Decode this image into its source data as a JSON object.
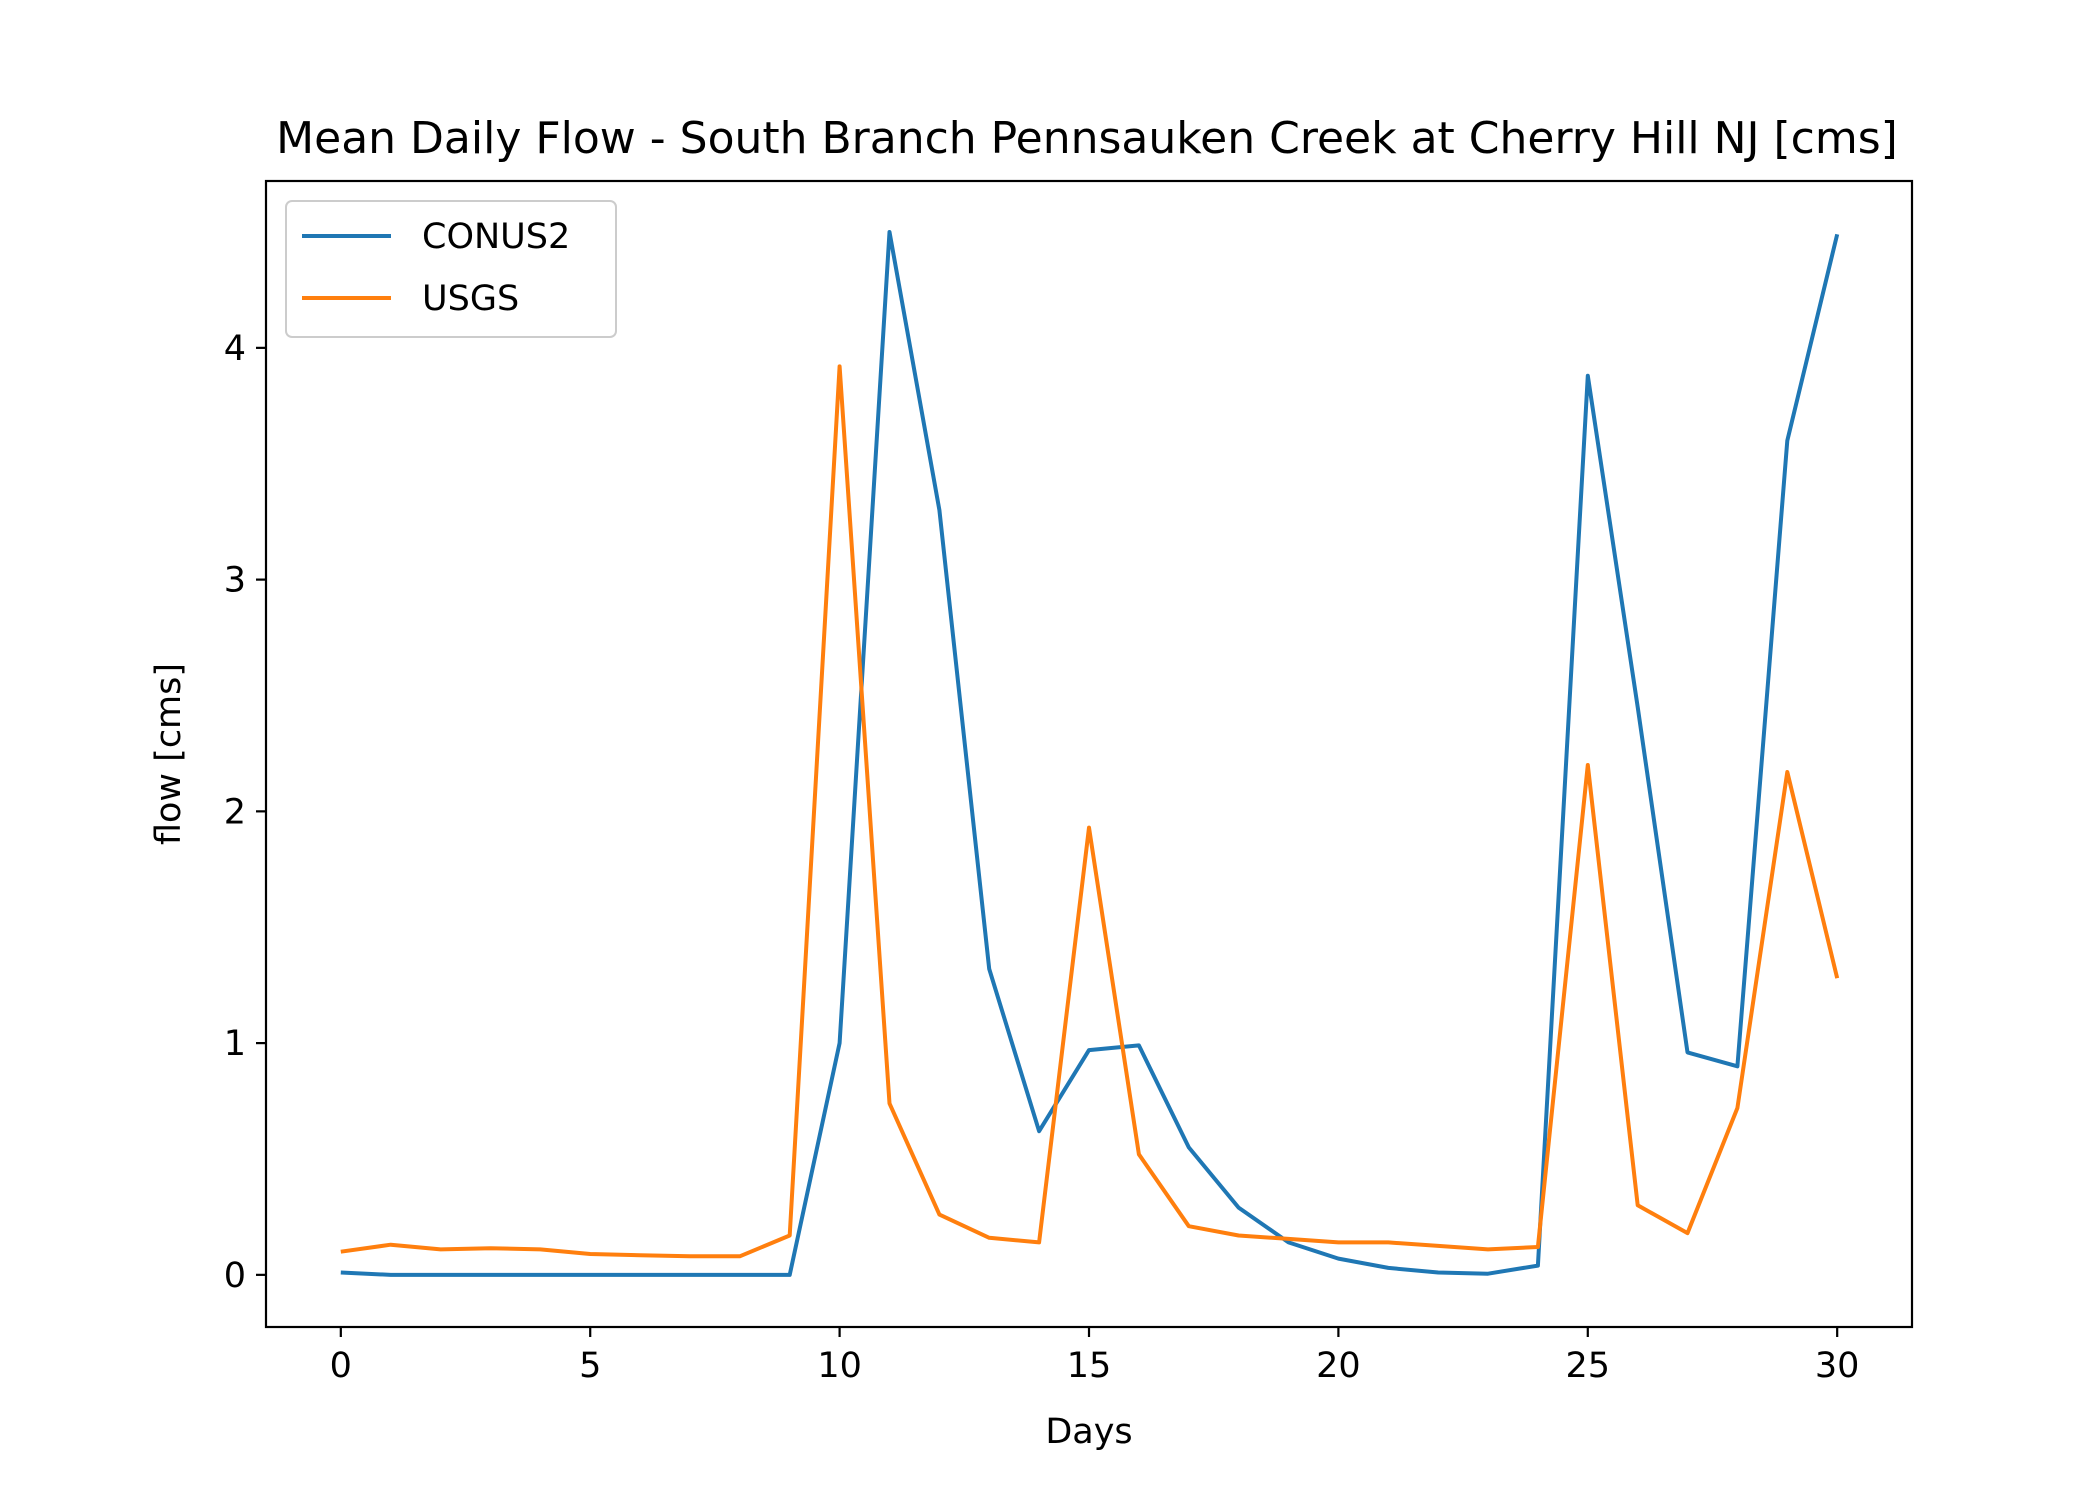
{
  "chart_data": {
    "type": "line",
    "title": "Mean Daily Flow - South Branch Pennsauken Creek at Cherry Hill NJ [cms]",
    "xlabel": "Days",
    "ylabel": "flow [cms]",
    "xlim": [
      -1.5,
      31.5
    ],
    "ylim": [
      -0.225,
      4.72
    ],
    "xticks": [
      0,
      5,
      10,
      15,
      20,
      25,
      30
    ],
    "yticks": [
      0,
      1,
      2,
      3,
      4
    ],
    "grid": false,
    "legend_position": "upper left",
    "x": [
      0,
      1,
      2,
      3,
      4,
      5,
      6,
      7,
      8,
      9,
      10,
      11,
      12,
      13,
      14,
      15,
      16,
      17,
      18,
      19,
      20,
      21,
      22,
      23,
      24,
      25,
      26,
      27,
      28,
      29,
      30
    ],
    "series": [
      {
        "name": "CONUS2",
        "color": "#1f77b4",
        "values": [
          0.01,
          0.0,
          0.0,
          0.0,
          0.0,
          0.0,
          0.0,
          0.0,
          0.0,
          0.0,
          1.0,
          4.5,
          3.3,
          1.32,
          0.62,
          0.97,
          0.99,
          0.55,
          0.29,
          0.14,
          0.07,
          0.03,
          0.01,
          0.005,
          0.04,
          3.88,
          2.45,
          0.96,
          0.9,
          3.6,
          4.49
        ]
      },
      {
        "name": "USGS",
        "color": "#ff7f0e",
        "values": [
          0.1,
          0.13,
          0.11,
          0.115,
          0.11,
          0.09,
          0.085,
          0.08,
          0.08,
          0.17,
          3.92,
          0.74,
          0.26,
          0.16,
          0.14,
          1.93,
          0.52,
          0.21,
          0.17,
          0.155,
          0.14,
          0.14,
          0.125,
          0.11,
          0.12,
          2.2,
          0.3,
          0.18,
          0.72,
          2.17,
          1.28
        ]
      }
    ]
  }
}
